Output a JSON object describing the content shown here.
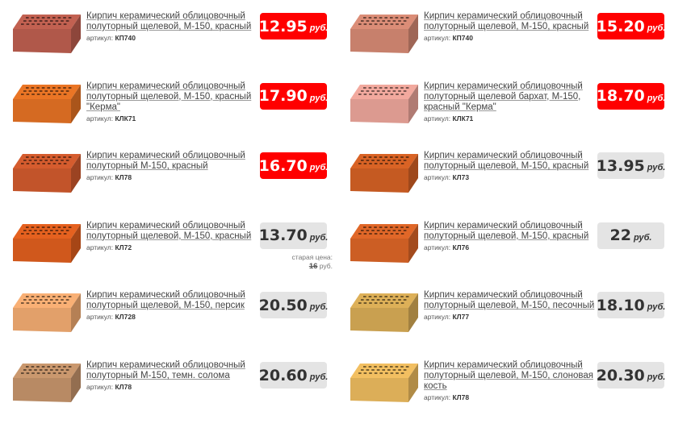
{
  "currency": "руб.",
  "sku_label": "артикул:",
  "old_price_label": "старая цена:",
  "products": [
    {
      "title": "Кирпич керамический облицовочный полуторный щелевой, М-150, красный",
      "sku": "КП740",
      "price": "12.95",
      "highlight": true,
      "color": "#b0584a"
    },
    {
      "title": "Кирпич керамический облицовочный полуторный щелевой, М-150, красный",
      "sku": "КП740",
      "price": "15.20",
      "highlight": true,
      "color": "#c7806c"
    },
    {
      "title": "Кирпич керамический облицовочный полуторный щелевой, М-150, красный \"Керма\"",
      "sku": "КЛК71",
      "price": "17.90",
      "highlight": true,
      "color": "#d56a22"
    },
    {
      "title": "Кирпич керамический облицовочный полуторный щелевой бархат, М-150, красный \"Керма\"",
      "sku": "КЛК71",
      "price": "18.70",
      "highlight": true,
      "color": "#dc9a90"
    },
    {
      "title": "Кирпич керамический облицовочный полуторный М-150, красный",
      "sku": "КЛ78",
      "price": "16.70",
      "highlight": true,
      "color": "#c2542a"
    },
    {
      "title": "Кирпич керамический облицовочный полуторный щелевой, М-150, красный",
      "sku": "КЛ73",
      "price": "13.95",
      "highlight": false,
      "color": "#c55a22"
    },
    {
      "title": "Кирпич керамический облицовочный полуторный щелевой, М-150, красный",
      "sku": "КЛ72",
      "price": "13.70",
      "highlight": false,
      "color": "#d0581c",
      "old_price": "16"
    },
    {
      "title": "Кирпич керамический облицовочный полуторный щелевой, М-150, красный",
      "sku": "КЛ76",
      "price": "22",
      "highlight": false,
      "color": "#cc5e24"
    },
    {
      "title": "Кирпич керамический облицовочный полуторный щелевой, М-150, персик",
      "sku": "КЛ728",
      "price": "20.50",
      "highlight": false,
      "color": "#e2a06a"
    },
    {
      "title": "Кирпич керамический облицовочный полуторный щелевой, М-150, песочный",
      "sku": "КЛ77",
      "price": "18.10",
      "highlight": false,
      "color": "#c9a050"
    },
    {
      "title": "Кирпич керамический облицовочный полуторный М-150, темн. солома",
      "sku": "КЛ78",
      "price": "20.60",
      "highlight": false,
      "color": "#b88a64"
    },
    {
      "title": "Кирпич керамический облицовочный полуторный щелевой, М-150, слоновая кость",
      "sku": "КЛ78",
      "price": "20.30",
      "highlight": false,
      "color": "#dcae58"
    }
  ]
}
